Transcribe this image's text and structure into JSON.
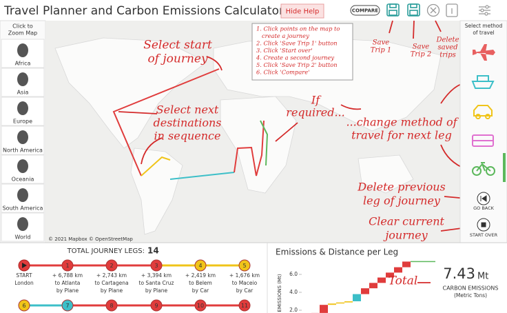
{
  "header": {
    "title": "Travel Planner and Carbon Emissions Calculator",
    "hide_help": "Hide Help",
    "compare": "COMPARE"
  },
  "zoom_panel": {
    "heading": [
      "Click to",
      "Zoom Map"
    ],
    "regions": [
      "Africa",
      "Asia",
      "Europe",
      "North America",
      "Oceania",
      "South America",
      "World"
    ]
  },
  "help_box": {
    "steps": [
      "1. Click points on the map to",
      "create a journey",
      "2. Click 'Save Trip 1' button",
      "3. Click 'Start over'",
      "4. Create a second journey",
      "5. Click 'Save Trip 2' button",
      "6. Click 'Compare'"
    ]
  },
  "annotations": {
    "select_start": [
      "Select start",
      "of journey"
    ],
    "select_next": [
      "Select next",
      "destinations",
      "in sequence"
    ],
    "if_required": [
      "If",
      "required..."
    ],
    "change_method": [
      "...change method of",
      "travel for next leg"
    ],
    "save_trip_1": [
      "Save",
      "Trip 1"
    ],
    "save_trip_2": [
      "Save",
      "Trip 2"
    ],
    "delete_saved": [
      "Delete",
      "saved",
      "trips"
    ],
    "delete_previous": [
      "Delete previous",
      "leg of journey"
    ],
    "clear_current": [
      "Clear current",
      "journey"
    ]
  },
  "map_credit": "© 2021 Mapbox © OpenStreetMap",
  "travel_panel": {
    "heading": [
      "Select method",
      "of travel"
    ],
    "go_back": "GO BACK",
    "start_over": "START OVER"
  },
  "journey": {
    "legs_label": "TOTAL JOURNEY LEGS:",
    "legs_count": 14,
    "start": {
      "label": "START",
      "place": "London",
      "color": "#e03c3c"
    },
    "stops": [
      {
        "number": 1,
        "distance": "+ 6,788 km",
        "place": "to Atlanta",
        "mode": "by Plane",
        "color": "#e03c3c"
      },
      {
        "number": 2,
        "distance": "+ 2,743 km",
        "place": "to Cartagena",
        "mode": "by Plane",
        "color": "#e03c3c"
      },
      {
        "number": 3,
        "distance": "+ 3,394 km",
        "place": "to Santa Cruz",
        "mode": "by Plane",
        "color": "#e03c3c"
      },
      {
        "number": 4,
        "distance": "+ 2,419 km",
        "place": "to Belem",
        "mode": "by Car",
        "color": "#f0c419"
      },
      {
        "number": 5,
        "distance": "+ 1,676 km",
        "place": "to Maceio",
        "mode": "by Car",
        "color": "#f0c419"
      }
    ],
    "more_stops": [
      {
        "number": 6,
        "color": "#f0c419"
      },
      {
        "number": 7,
        "color": "#3cbfc8"
      },
      {
        "number": 8,
        "color": "#e03c3c"
      },
      {
        "number": 9,
        "color": "#e03c3c"
      },
      {
        "number": 10,
        "color": "#e03c3c"
      },
      {
        "number": 11,
        "color": "#e03c3c"
      }
    ]
  },
  "emissions_chart": {
    "type": "waterfall",
    "title": "Emissions & Distance per Leg",
    "y_label": "EMISSIONS (Mt)",
    "ylim": [
      0,
      8
    ],
    "yticks": [
      {
        "value": 2,
        "label": "2.0"
      },
      {
        "value": 4,
        "label": "4.0"
      },
      {
        "value": 6,
        "label": "6.0"
      }
    ],
    "values": [
      0.9,
      0.8,
      0.9,
      0.15,
      0.12,
      0.13,
      0.8,
      0.65,
      0.6,
      0.6,
      0.55,
      0.6,
      0.63,
      0.0
    ],
    "colors": [
      "#e03c3c",
      "#e03c3c",
      "#e03c3c",
      "#f0c419",
      "#f0c419",
      "#f0c419",
      "#3cbfc8",
      "#e03c3c",
      "#e03c3c",
      "#e03c3c",
      "#e03c3c",
      "#e03c3c",
      "#e03c3c",
      "#5cb85c"
    ]
  },
  "total": {
    "annotation": "Total",
    "value": 7.43,
    "unit": "Mt",
    "label": "CARBON EMISSIONS",
    "sublabel": "(Metric Tons)"
  }
}
